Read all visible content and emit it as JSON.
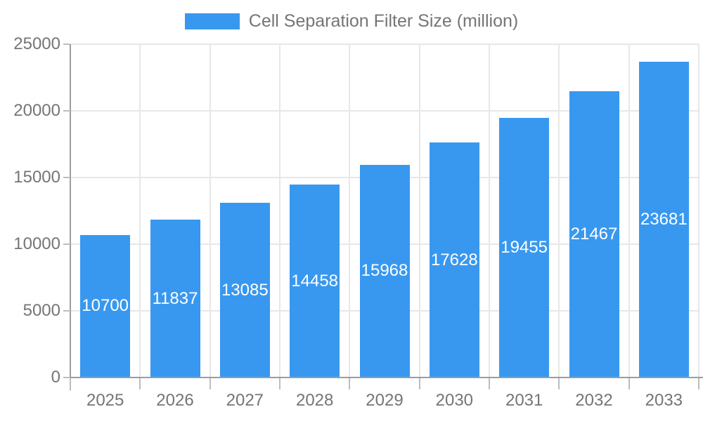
{
  "legend": {
    "label": "Cell Separation Filter Size (million)"
  },
  "colors": {
    "bar": "#3898f0",
    "axis": "#9c9c9c",
    "grid": "#e7e7e7",
    "tick": "#bdbdbd",
    "text": "#757575",
    "bar_label": "#ffffff"
  },
  "chart_data": {
    "type": "bar",
    "title": "Cell Separation Filter Size (million)",
    "categories": [
      "2025",
      "2026",
      "2027",
      "2028",
      "2029",
      "2030",
      "2031",
      "2032",
      "2033"
    ],
    "values": [
      10700,
      11837,
      13085,
      14458,
      15968,
      17628,
      19455,
      21467,
      23681
    ],
    "xlabel": "",
    "ylabel": "",
    "ylim": [
      0,
      25000
    ],
    "yticks": [
      0,
      5000,
      10000,
      15000,
      20000,
      25000
    ],
    "ytick_labels": [
      "0",
      "5000",
      "10000",
      "15000",
      "20000",
      "25000"
    ],
    "grid": true,
    "legend_position": "top",
    "bar_labels": "inside-center"
  }
}
